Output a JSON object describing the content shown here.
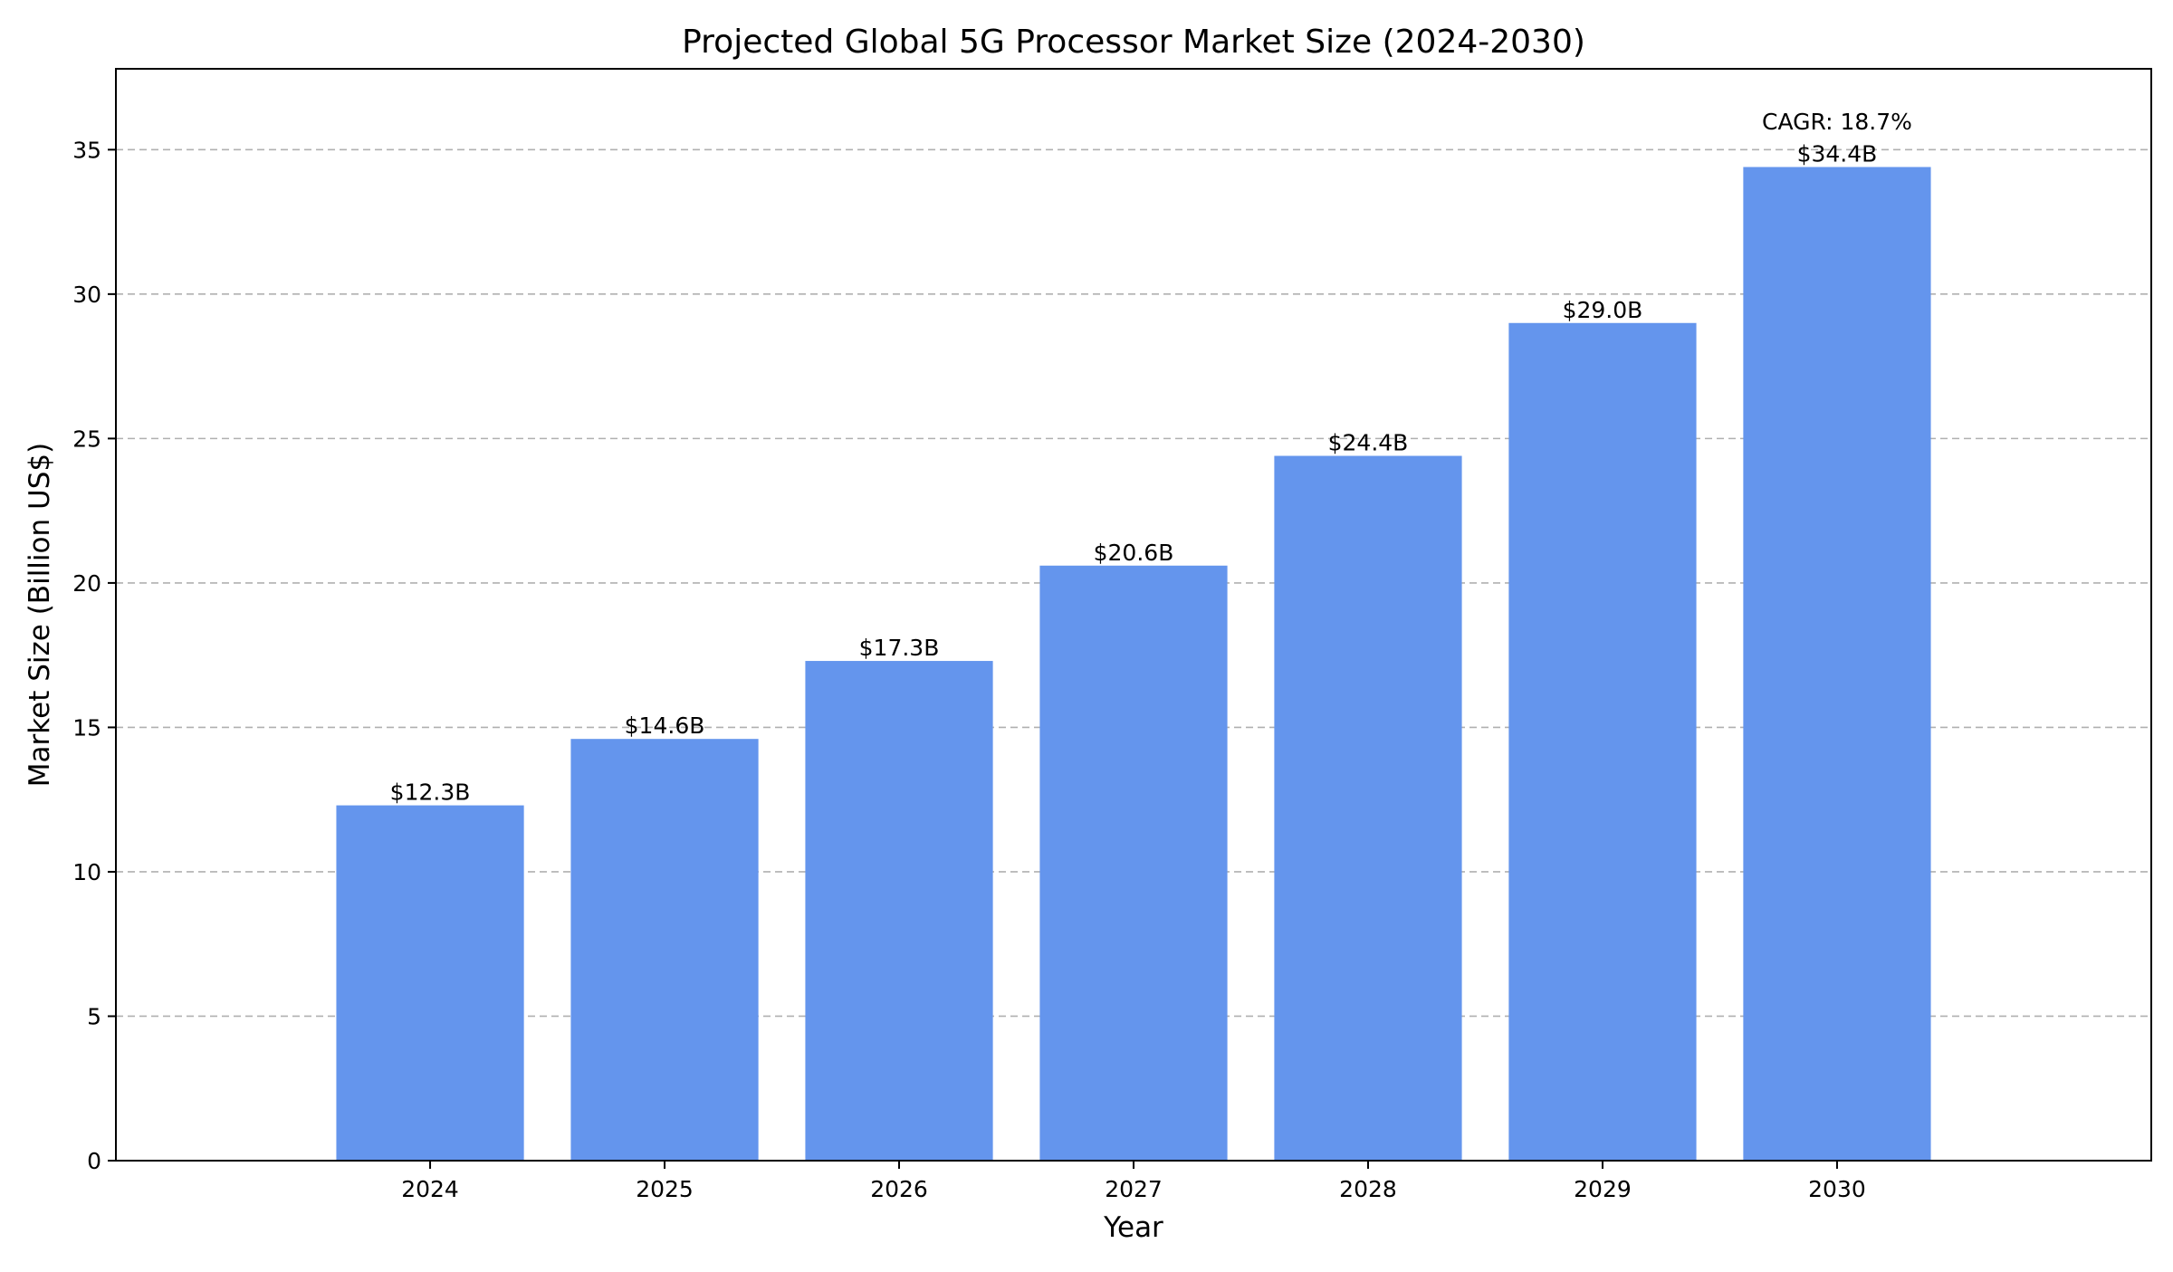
{
  "chart_data": {
    "type": "bar",
    "title": "Projected Global 5G Processor Market Size (2024-2030)",
    "xlabel": "Year",
    "ylabel": "Market Size (Billion US$)",
    "categories": [
      "2024",
      "2025",
      "2026",
      "2027",
      "2028",
      "2029",
      "2030"
    ],
    "values": [
      12.3,
      14.6,
      17.3,
      20.6,
      24.4,
      29.0,
      34.4
    ],
    "data_labels": [
      "$12.3B",
      "$14.6B",
      "$17.3B",
      "$20.6B",
      "$24.4B",
      "$29.0B",
      "$34.4B"
    ],
    "ylim": [
      0,
      37.8
    ],
    "yticks": [
      0,
      5,
      10,
      15,
      20,
      25,
      30,
      35
    ],
    "grid": "y-dashed",
    "bar_color": "#6495ED",
    "grid_color": "#b0b0b0",
    "annotation": {
      "text": "CAGR: 18.7%",
      "category": "2030",
      "value": 35.7
    }
  }
}
